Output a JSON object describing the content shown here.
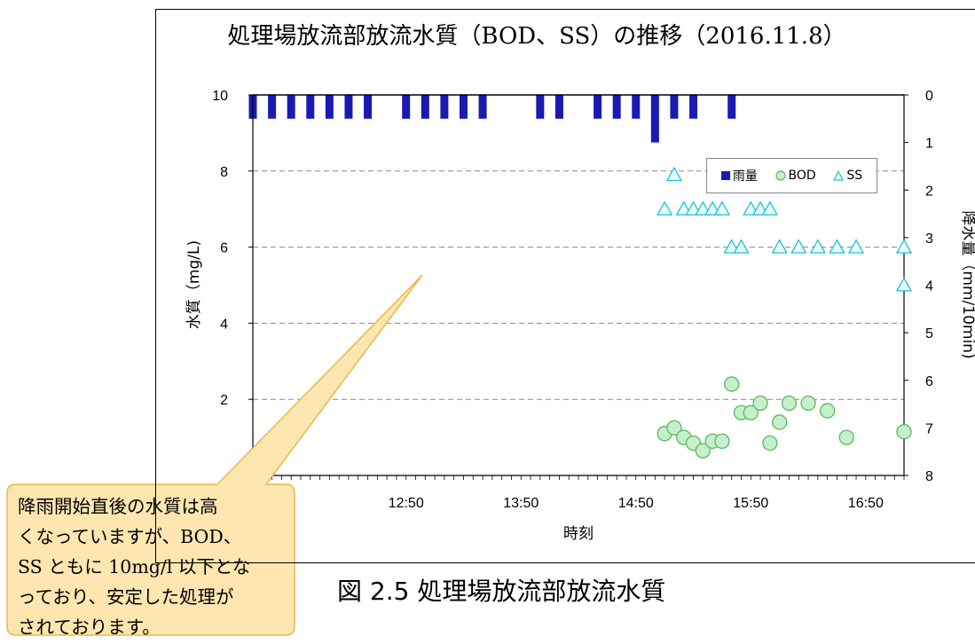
{
  "chart_data": {
    "type": "scatter",
    "title": "処理場放流部放流水質（BOD、SS）の推移（2016.11.8）",
    "xlabel": "時刻",
    "ylabel_left": "水質（mg/L)",
    "ylabel_right": "降水量（mm/10min)",
    "y_left_lim": [
      0,
      10
    ],
    "y_left_ticks": [
      "2",
      "4",
      "6",
      "8",
      "10"
    ],
    "y_right_lim": [
      0,
      8
    ],
    "y_right_ticks": [
      "0",
      "1",
      "2",
      "3",
      "4",
      "5",
      "6",
      "7",
      "8"
    ],
    "x_tick_labels": [
      "12:50",
      "13:50",
      "14:50",
      "15:50",
      "16:50"
    ],
    "x_tick_minutes": [
      770,
      830,
      890,
      950,
      1010
    ],
    "x_lim_minutes": [
      690,
      1030
    ],
    "grid": "dashed horizontal",
    "legend_position": "top-right",
    "legend": [
      "雨量",
      "BOD",
      "SS"
    ],
    "colors": {
      "rain": "#1a1ab3",
      "bod_fill": "#c6efce",
      "bod_stroke": "#5cb85c",
      "ss_fill": "#eaffff",
      "ss_stroke": "#20c0d0",
      "grid": "#888888"
    },
    "rain_series": {
      "name": "雨量",
      "x_minutes": [
        690,
        700,
        710,
        720,
        730,
        740,
        750,
        770,
        780,
        790,
        800,
        810,
        840,
        850,
        870,
        880,
        890,
        900,
        910,
        920,
        940
      ],
      "values": [
        0.5,
        0.5,
        0.5,
        0.5,
        0.5,
        0.5,
        0.5,
        0.5,
        0.5,
        0.5,
        0.5,
        0.5,
        0.5,
        0.5,
        0.5,
        0.5,
        0.5,
        1.0,
        0.5,
        0.5,
        0.5
      ]
    },
    "bod_series": {
      "name": "BOD",
      "x_minutes": [
        905,
        910,
        915,
        920,
        925,
        930,
        935,
        940,
        945,
        950,
        955,
        960,
        965,
        970,
        980,
        990,
        1000,
        1030,
        1060
      ],
      "values": [
        1.1,
        1.25,
        1.0,
        0.85,
        0.65,
        0.9,
        0.9,
        2.4,
        1.65,
        1.65,
        1.9,
        0.85,
        1.4,
        1.9,
        1.9,
        1.7,
        1.0,
        1.15,
        1.15
      ]
    },
    "ss_series": {
      "name": "SS",
      "x_minutes": [
        905,
        910,
        915,
        920,
        925,
        930,
        935,
        940,
        945,
        950,
        955,
        960,
        965,
        975,
        985,
        995,
        1005,
        1035,
        1090
      ],
      "values": [
        7.0,
        7.9,
        7.0,
        7.0,
        7.0,
        7.0,
        7.0,
        6.0,
        6.0,
        7.0,
        7.0,
        7.0,
        6.0,
        6.0,
        6.0,
        6.0,
        6.0,
        6.0,
        5.0
      ]
    }
  },
  "callout": {
    "lines": [
      "降雨開始直後の水質は高",
      "くなっていますが、BOD、",
      "SS ともに 10mg/l 以下とな",
      "っており、安定した処理が",
      "されております。"
    ]
  },
  "caption": "図 2.5 処理場放流部放流水質"
}
